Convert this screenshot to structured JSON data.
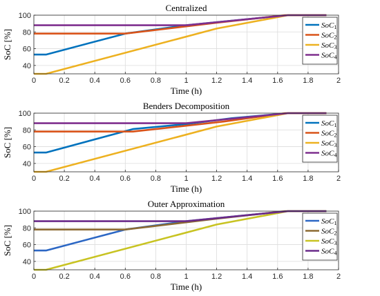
{
  "chart_data": [
    {
      "type": "line",
      "title": "Centralized",
      "xlabel": "Time (h)",
      "ylabel": "SoC [%]",
      "xlim": [
        0,
        2
      ],
      "ylim": [
        30,
        100
      ],
      "xticks": [
        "0",
        "0.2",
        "0.4",
        "0.6",
        "0.8",
        "1",
        "1.2",
        "1.4",
        "1.6",
        "1.8",
        "2"
      ],
      "yticks": [
        "40",
        "60",
        "80",
        "100"
      ],
      "grid": true,
      "legend_position": "top-right",
      "series": [
        {
          "name": "SoC",
          "sub": "1",
          "color": "#0072BD",
          "x": [
            0,
            0.08,
            0.6,
            1.0,
            1.67,
            1.92
          ],
          "y": [
            53,
            53,
            78,
            88,
            100,
            100
          ]
        },
        {
          "name": "SoC",
          "sub": "2",
          "color": "#D95319",
          "x": [
            0,
            0.6,
            1.2,
            1.65,
            1.92
          ],
          "y": [
            78,
            78,
            91,
            100,
            100
          ]
        },
        {
          "name": "SoC",
          "sub": "3",
          "color": "#EDB120",
          "x": [
            0,
            0.08,
            1.2,
            1.67,
            1.92
          ],
          "y": [
            30,
            30,
            84,
            100,
            100
          ]
        },
        {
          "name": "SoC",
          "sub": "4",
          "color": "#7E2F8E",
          "x": [
            0,
            1.0,
            1.67,
            1.92
          ],
          "y": [
            88,
            88,
            100,
            100
          ]
        }
      ]
    },
    {
      "type": "line",
      "title": "Benders Decomposition",
      "xlabel": "Time (h)",
      "ylabel": "SoC [%]",
      "xlim": [
        0,
        2
      ],
      "ylim": [
        30,
        100
      ],
      "xticks": [
        "0",
        "0.2",
        "0.4",
        "0.6",
        "0.8",
        "1",
        "1.2",
        "1.4",
        "1.6",
        "1.8",
        "2"
      ],
      "yticks": [
        "40",
        "60",
        "80",
        "100"
      ],
      "grid": true,
      "legend_position": "top-right",
      "series": [
        {
          "name": "SoC",
          "sub": "1",
          "color": "#0072BD",
          "x": [
            0,
            0.08,
            0.65,
            1.0,
            1.3,
            1.67,
            1.92
          ],
          "y": [
            53,
            53,
            81,
            87,
            94,
            100,
            100
          ]
        },
        {
          "name": "SoC",
          "sub": "2",
          "color": "#D95319",
          "x": [
            0,
            0.65,
            1.25,
            1.65,
            1.92
          ],
          "y": [
            78,
            78,
            90,
            100,
            100
          ]
        },
        {
          "name": "SoC",
          "sub": "3",
          "color": "#EDB120",
          "x": [
            0,
            0.08,
            1.2,
            1.67,
            1.92
          ],
          "y": [
            30,
            30,
            84,
            100,
            100
          ]
        },
        {
          "name": "SoC",
          "sub": "4",
          "color": "#7E2F8E",
          "x": [
            0,
            1.0,
            1.67,
            1.92
          ],
          "y": [
            88,
            88,
            100,
            100
          ]
        }
      ]
    },
    {
      "type": "line",
      "title": "Outer Approximation",
      "xlabel": "Time (h)",
      "ylabel": "SoC [%]",
      "xlim": [
        0,
        2
      ],
      "ylim": [
        30,
        100
      ],
      "xticks": [
        "0",
        "0.2",
        "0.4",
        "0.6",
        "0.8",
        "1",
        "1.2",
        "1.4",
        "1.6",
        "1.8",
        "2"
      ],
      "yticks": [
        "40",
        "60",
        "80",
        "100"
      ],
      "grid": true,
      "legend_position": "top-right",
      "series": [
        {
          "name": "SoC",
          "sub": "1",
          "color": "#2C67C4",
          "x": [
            0,
            0.08,
            0.6,
            1.0,
            1.67,
            1.92
          ],
          "y": [
            53,
            53,
            78,
            88,
            100,
            100
          ]
        },
        {
          "name": "SoC",
          "sub": "2",
          "color": "#8C6A32",
          "x": [
            0,
            0.6,
            1.2,
            1.65,
            1.92
          ],
          "y": [
            78,
            78,
            91,
            100,
            100
          ]
        },
        {
          "name": "SoC",
          "sub": "3",
          "color": "#C8C322",
          "x": [
            0,
            0.08,
            1.2,
            1.67,
            1.92
          ],
          "y": [
            30,
            30,
            84,
            100,
            100
          ]
        },
        {
          "name": "SoC",
          "sub": "4",
          "color": "#6A2A8A",
          "x": [
            0,
            1.0,
            1.67,
            1.92
          ],
          "y": [
            88,
            88,
            100,
            100
          ]
        }
      ]
    }
  ]
}
